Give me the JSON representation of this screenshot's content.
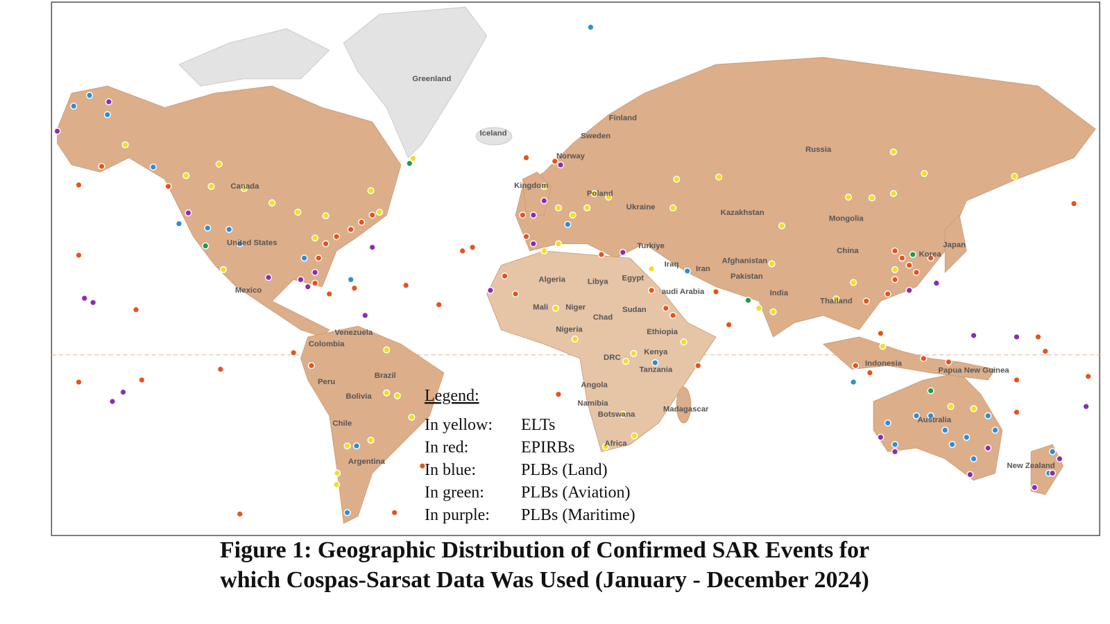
{
  "map": {
    "labels": [
      "Greenland",
      "Iceland",
      "Finland",
      "Sweden",
      "Norway",
      "Kingdom",
      "Poland",
      "Ukraine",
      "Russia",
      "Kazakhstan",
      "Mongolia",
      "China",
      "Japan",
      "Korea",
      "Afghanistan",
      "Pakistan",
      "India",
      "Iran",
      "Iraq",
      "Turkiye",
      "Egypt",
      "audi Arabia",
      "Algeria",
      "Libya",
      "Mali",
      "Niger",
      "Chad",
      "Sudan",
      "Nigeria",
      "Ethiopia",
      "Kenya",
      "DRC",
      "Tanzania",
      "Angola",
      "Namibia",
      "Botswana",
      "Africa",
      "Madagascar",
      "Thailand",
      "Indonesia",
      "Papua New Guinea",
      "Australia",
      "New Zealand",
      "Canada",
      "United States",
      "Mexico",
      "Venezuela",
      "Colombia",
      "Peru",
      "Brazil",
      "Bolivia",
      "Chile",
      "Argentina"
    ]
  },
  "legend": {
    "title": "Legend:",
    "entries": [
      {
        "color": "In yellow:",
        "type": "ELTs"
      },
      {
        "color": "In red:",
        "type": "EPIRBs"
      },
      {
        "color": "In blue:",
        "type": "PLBs (Land)"
      },
      {
        "color": "In green:",
        "type": "PLBs (Aviation)"
      },
      {
        "color": "In purple:",
        "type": "PLBs (Maritime)"
      }
    ]
  },
  "caption": {
    "line1": "Figure 1:  Geographic Distribution of Confirmed SAR Events for",
    "line2": "which Cospas-Sarsat Data Was Used (January - December 2024)"
  }
}
